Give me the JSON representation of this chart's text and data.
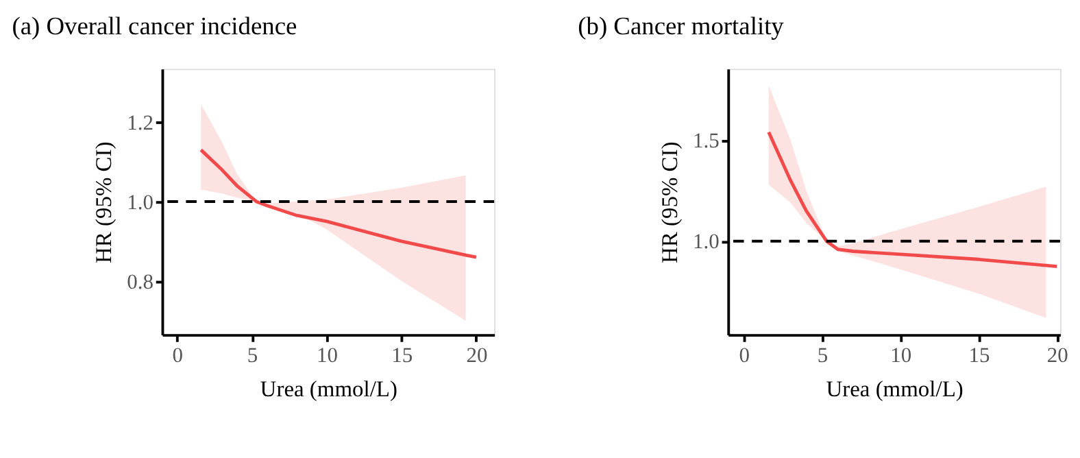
{
  "chart_data": [
    {
      "type": "line",
      "title": "(a) Overall cancer incidence",
      "xlabel": "Urea (mmol/L)",
      "ylabel": "HR (95% CI)",
      "xlim": [
        -1,
        21.2
      ],
      "ylim": [
        0.665,
        1.334
      ],
      "xticks": [
        0,
        5,
        10,
        15,
        20
      ],
      "yticks": [
        0.8,
        {
          "value": 1,
          "label": "1.0"
        },
        1.2
      ],
      "grid": false,
      "line_style": "solid",
      "series": [
        {
          "color": "#f24a4a",
          "x": [
            1.6,
            3,
            4,
            5.3,
            6,
            8,
            10,
            15,
            19.3,
            20
          ],
          "values": [
            1.13,
            1.08,
            1.04,
            1.0,
            0.99,
            0.965,
            0.95,
            0.9,
            0.865,
            0.86
          ],
          "lower": [
            1.03,
            1.02,
            1.01,
            1.0,
            0.985,
            0.97,
            0.93,
            0.8,
            0.7,
            null
          ],
          "upper": [
            1.245,
            1.15,
            1.07,
            1.0,
            0.995,
            1.0,
            1.005,
            1.035,
            1.066,
            null
          ]
        }
      ],
      "ref_lines": [
        {
          "axis": "y",
          "value": 1.0,
          "line_style": "dashed",
          "color": "#000000"
        }
      ]
    },
    {
      "type": "line",
      "title": "(b) Cancer mortality",
      "xlabel": "Urea (mmol/L)",
      "ylabel": "HR (95% CI)",
      "xlim": [
        -1,
        20.2
      ],
      "ylim": [
        0.537,
        1.854
      ],
      "xticks": [
        0,
        5,
        10,
        15,
        20
      ],
      "yticks": [
        {
          "value": 1,
          "label": "1.0"
        },
        1.5
      ],
      "grid": false,
      "line_style": "solid",
      "series": [
        {
          "color": "#f24a4a",
          "x": [
            1.6,
            3,
            4,
            5.3,
            6,
            7,
            10,
            15,
            19.3,
            20
          ],
          "values": [
            1.54,
            1.3,
            1.15,
            1.0,
            0.96,
            0.95,
            0.935,
            0.91,
            0.88,
            0.875
          ],
          "lower": [
            1.28,
            1.19,
            1.09,
            1.0,
            0.95,
            0.93,
            0.86,
            0.74,
            0.62,
            null
          ],
          "upper": [
            1.77,
            1.5,
            1.25,
            1.0,
            0.975,
            0.99,
            1.06,
            1.17,
            1.27,
            null
          ]
        }
      ],
      "ref_lines": [
        {
          "axis": "y",
          "value": 1.0,
          "line_style": "dashed",
          "color": "#000000"
        }
      ]
    }
  ]
}
